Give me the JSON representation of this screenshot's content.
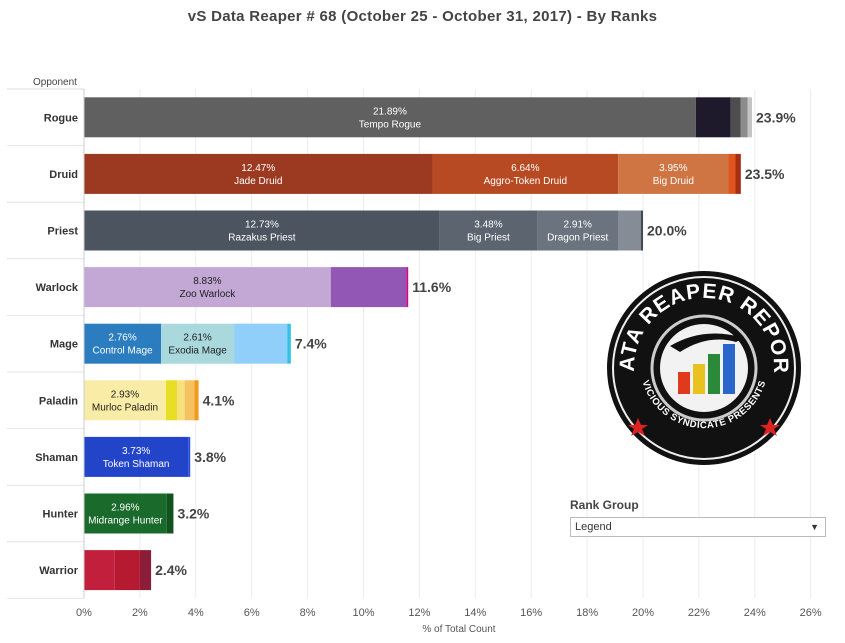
{
  "title": "vS Data Reaper #  68 (October 25 - October 31, 2017) - By Ranks",
  "rank_group": {
    "label": "Rank Group",
    "selected": "Legend"
  },
  "logo": {
    "text_top": "DATA REAPER REPORT",
    "text_bottom": "VICIOUS SYNDICATE PRESENTS"
  },
  "chart_data": {
    "type": "bar",
    "orientation": "horizontal",
    "stacked": true,
    "title": "vS Data Reaper #  68 (October 25 - October 31, 2017) - By Ranks",
    "ylabel": "Opponent",
    "xlabel": "% of Total Count",
    "xlim": [
      0,
      27
    ],
    "xticks": [
      "0%",
      "2%",
      "4%",
      "6%",
      "8%",
      "10%",
      "12%",
      "14%",
      "16%",
      "18%",
      "20%",
      "22%",
      "24%",
      "26%"
    ],
    "grid": true,
    "categories": [
      "Rogue",
      "Druid",
      "Priest",
      "Warlock",
      "Mage",
      "Paladin",
      "Shaman",
      "Hunter",
      "Warrior"
    ],
    "totals": [
      "23.9%",
      "23.5%",
      "20.0%",
      "11.6%",
      "7.4%",
      "4.1%",
      "3.8%",
      "3.2%",
      "2.4%"
    ],
    "bars": [
      {
        "category": "Rogue",
        "segments": [
          {
            "value": 21.89,
            "name": "Tempo Rogue",
            "label": "21.89%",
            "color": "#606060"
          },
          {
            "value": 1.25,
            "name": "",
            "label": "",
            "color": "#1e1a2c"
          },
          {
            "value": 0.35,
            "name": "",
            "label": "",
            "color": "#4e4e50"
          },
          {
            "value": 0.25,
            "name": "",
            "label": "",
            "color": "#8c8c8c"
          },
          {
            "value": 0.16,
            "name": "",
            "label": "",
            "color": "#c4c4c4"
          }
        ]
      },
      {
        "category": "Druid",
        "segments": [
          {
            "value": 12.47,
            "name": "Jade Druid",
            "label": "12.47%",
            "color": "#9b3a20"
          },
          {
            "value": 6.64,
            "name": "Aggro-Token Druid",
            "label": "6.64%",
            "color": "#b74a22"
          },
          {
            "value": 3.95,
            "name": "Big Druid",
            "label": "3.95%",
            "color": "#cf7443"
          },
          {
            "value": 0.25,
            "name": "",
            "label": "",
            "color": "#e0541e"
          },
          {
            "value": 0.19,
            "name": "",
            "label": "",
            "color": "#a62e12"
          }
        ]
      },
      {
        "category": "Priest",
        "segments": [
          {
            "value": 12.73,
            "name": "Razakus Priest",
            "label": "12.73%",
            "color": "#4c5460"
          },
          {
            "value": 3.48,
            "name": "Big Priest",
            "label": "3.48%",
            "color": "#5c6470"
          },
          {
            "value": 2.91,
            "name": "Dragon Priest",
            "label": "2.91%",
            "color": "#6b737e"
          },
          {
            "value": 0.8,
            "name": "",
            "label": "",
            "color": "#858c95"
          },
          {
            "value": 0.08,
            "name": "",
            "label": "",
            "color": "#444b55"
          }
        ]
      },
      {
        "category": "Warlock",
        "segments": [
          {
            "value": 8.83,
            "name": "Zoo Warlock",
            "label": "8.83%",
            "color": "#c3a8d6"
          },
          {
            "value": 2.7,
            "name": "",
            "label": "",
            "color": "#9257b5"
          },
          {
            "value": 0.07,
            "name": "",
            "label": "",
            "color": "#c2128a"
          }
        ]
      },
      {
        "category": "Mage",
        "segments": [
          {
            "value": 2.76,
            "name": "Control Mage",
            "label": "2.76%",
            "color": "#2b7dbf"
          },
          {
            "value": 2.61,
            "name": "Exodia Mage",
            "label": "2.61%",
            "color": "#a9d8dd"
          },
          {
            "value": 1.9,
            "name": "",
            "label": "",
            "color": "#8fcff9"
          },
          {
            "value": 0.13,
            "name": "",
            "label": "",
            "color": "#35c1e6"
          }
        ]
      },
      {
        "category": "Paladin",
        "segments": [
          {
            "value": 2.93,
            "name": "Murloc Paladin",
            "label": "2.93%",
            "color": "#f9eca6"
          },
          {
            "value": 0.4,
            "name": "",
            "label": "",
            "color": "#e8de25"
          },
          {
            "value": 0.27,
            "name": "",
            "label": "",
            "color": "#f7e17a"
          },
          {
            "value": 0.35,
            "name": "",
            "label": "",
            "color": "#f6c260"
          },
          {
            "value": 0.15,
            "name": "",
            "label": "",
            "color": "#f09a20"
          }
        ]
      },
      {
        "category": "Shaman",
        "segments": [
          {
            "value": 3.73,
            "name": "Token Shaman",
            "label": "3.73%",
            "color": "#2244c8"
          },
          {
            "value": 0.07,
            "name": "",
            "label": "",
            "color": "#2a50dd"
          }
        ]
      },
      {
        "category": "Hunter",
        "segments": [
          {
            "value": 2.96,
            "name": "Midrange Hunter",
            "label": "2.96%",
            "color": "#1a6b2b"
          },
          {
            "value": 0.24,
            "name": "",
            "label": "",
            "color": "#11521f"
          }
        ]
      },
      {
        "category": "Warrior",
        "segments": [
          {
            "value": 1.1,
            "name": "",
            "label": "",
            "color": "#c21f3d"
          },
          {
            "value": 0.9,
            "name": "",
            "label": "",
            "color": "#b51a30"
          },
          {
            "value": 0.4,
            "name": "",
            "label": "",
            "color": "#8b1d38"
          }
        ]
      }
    ]
  }
}
